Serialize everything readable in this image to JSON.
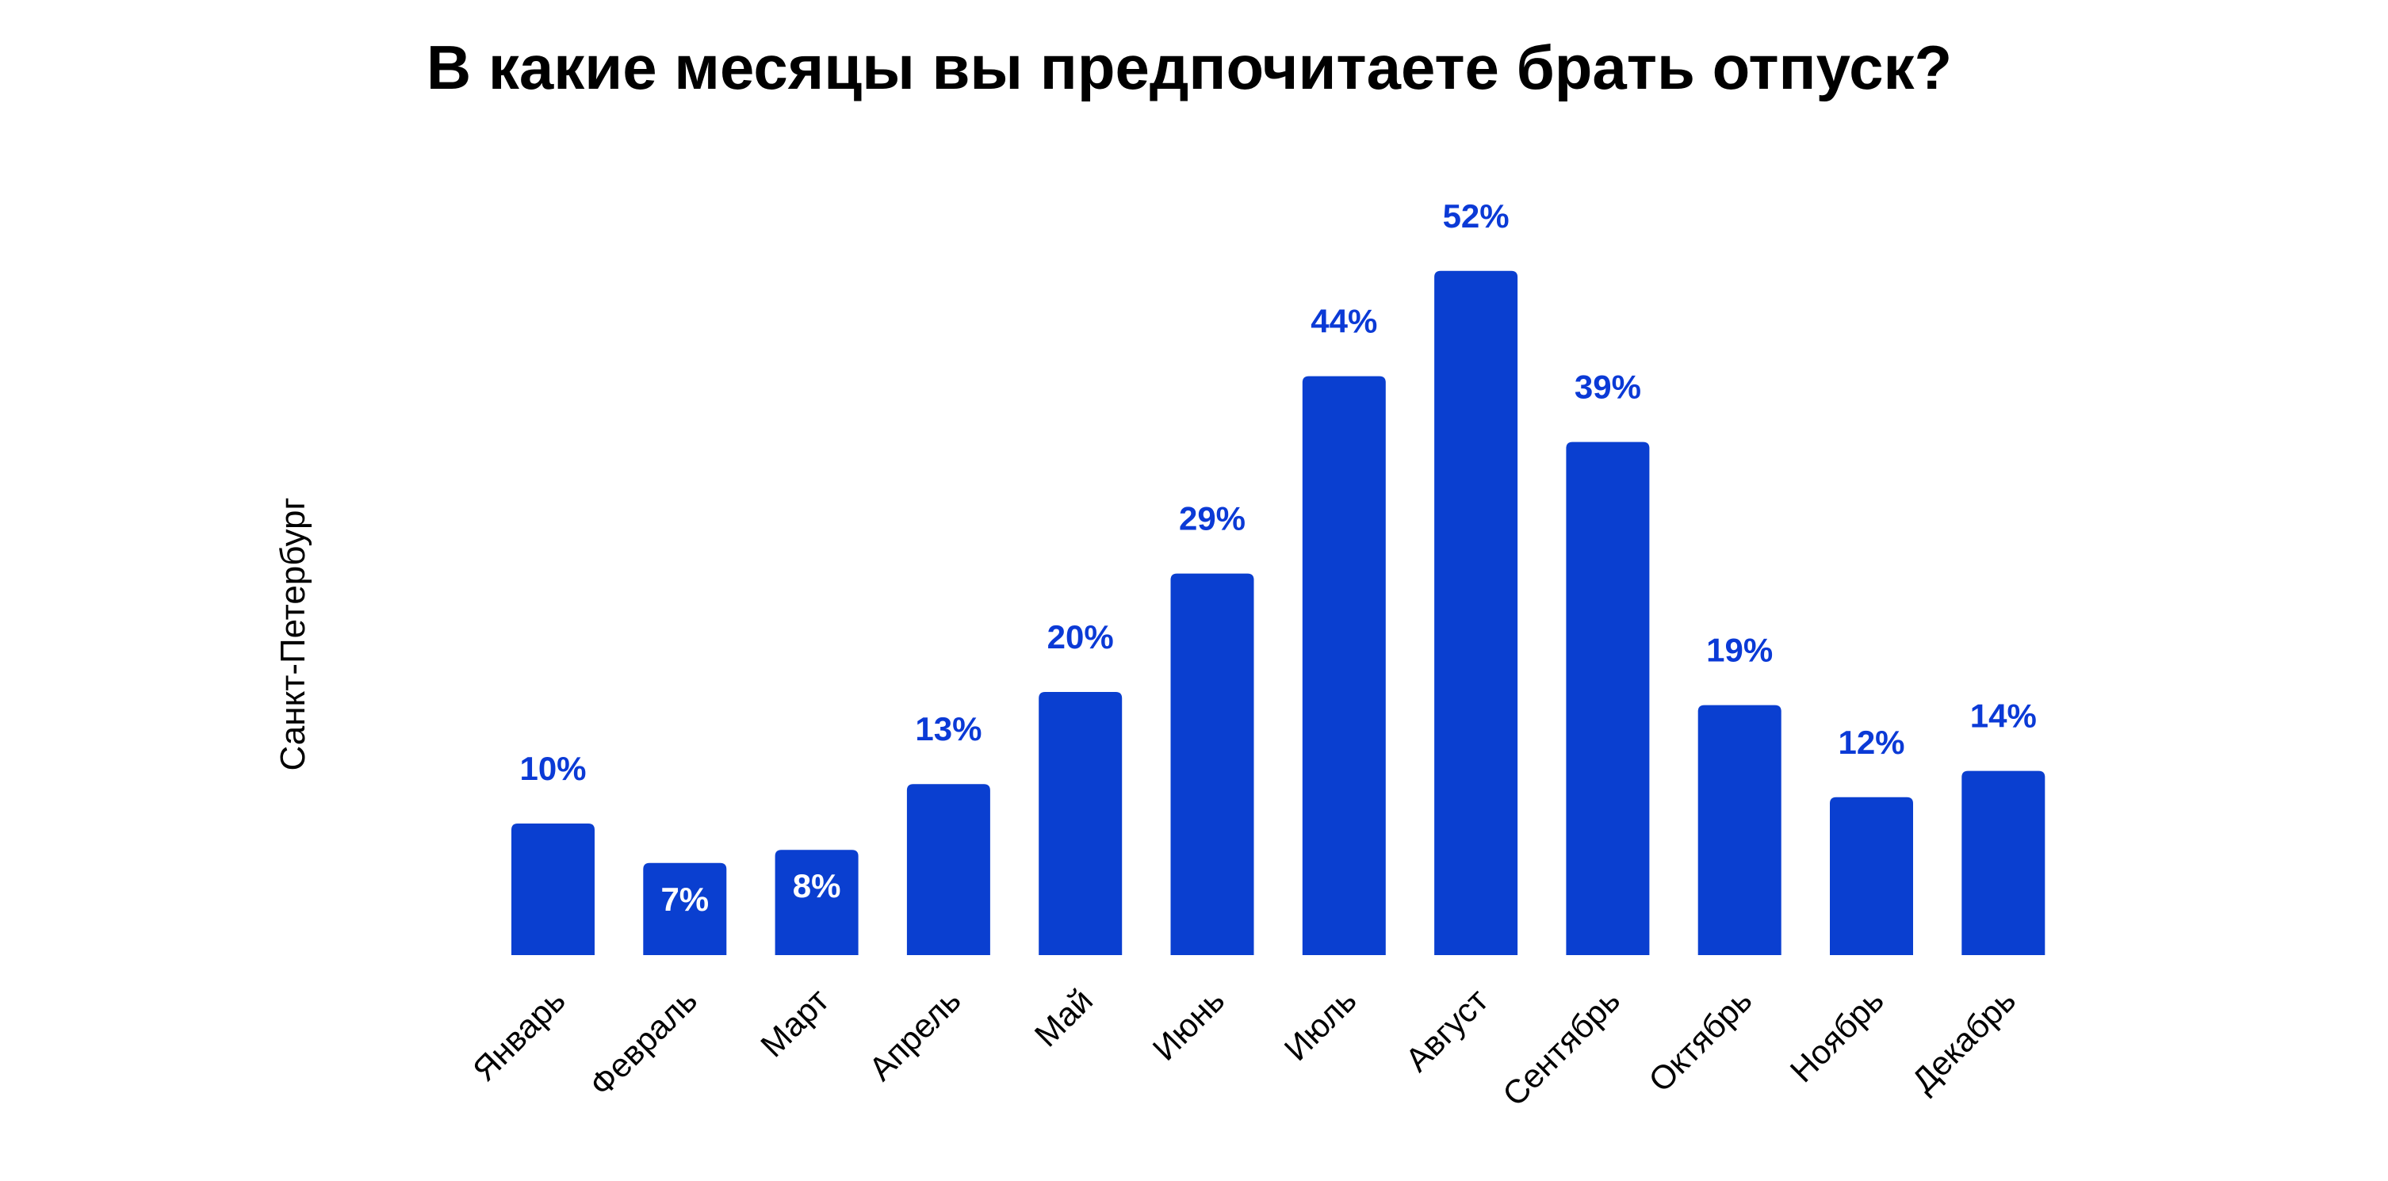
{
  "chart_data": {
    "type": "bar",
    "title": "В какие месяцы вы предпочитаете брать отпуск?",
    "xlabel": "",
    "ylabel": "Санкт-Петербург",
    "categories": [
      "Январь",
      "Февраль",
      "Март",
      "Апрель",
      "Май",
      "Июнь",
      "Июль",
      "Август",
      "Сентябрь",
      "Октябрь",
      "Ноябрь",
      "Декабрь"
    ],
    "values": [
      10,
      7,
      8,
      13,
      20,
      29,
      44,
      52,
      39,
      19,
      12,
      14
    ],
    "value_labels": [
      "10%",
      "7%",
      "8%",
      "13%",
      "20%",
      "29%",
      "44%",
      "52%",
      "39%",
      "19%",
      "12%",
      "14%"
    ],
    "ylim": [
      0,
      52
    ],
    "grid": false,
    "colors": {
      "bar": "#0a3fd0",
      "label": "#0b3ad6",
      "inside_label": "#ffffff"
    }
  }
}
